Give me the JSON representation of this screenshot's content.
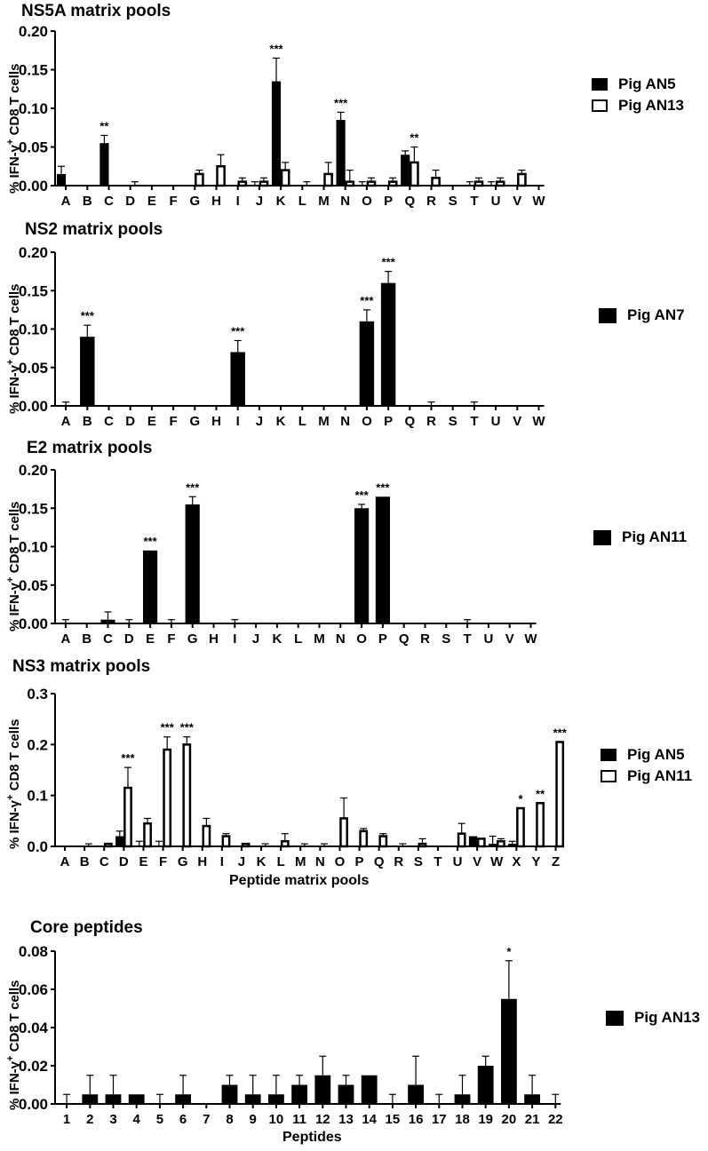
{
  "ylabel": "% IFN-γ+ CD8 T cells",
  "chart_data": [
    {
      "type": "bar",
      "title": "NS5A matrix pools",
      "xlabel": "",
      "ylabel": "% IFN-γ+ CD8 T cells",
      "ylim": [
        0,
        0.2
      ],
      "yticks": [
        "0.00",
        "0.05",
        "0.10",
        "0.15",
        "0.20"
      ],
      "categories": [
        "A",
        "B",
        "C",
        "D",
        "E",
        "F",
        "G",
        "H",
        "I",
        "J",
        "K",
        "L",
        "M",
        "N",
        "O",
        "P",
        "Q",
        "R",
        "S",
        "T",
        "U",
        "V",
        "W"
      ],
      "series": [
        {
          "name": "Pig AN5",
          "fill": "#000000",
          "values": [
            0.015,
            0,
            0.055,
            0,
            0,
            0,
            0,
            0,
            0,
            0,
            0.135,
            0,
            0,
            0.085,
            0,
            0,
            0.04,
            0,
            0,
            0,
            0,
            0,
            0
          ],
          "errors": [
            0.01,
            0,
            0.01,
            0,
            0,
            0,
            0,
            0,
            0,
            0.005,
            0.03,
            0,
            0,
            0.01,
            0.005,
            0,
            0.005,
            0,
            0,
            0.005,
            0.005,
            0,
            0
          ]
        },
        {
          "name": "Pig AN13",
          "fill": "#ffffff",
          "values": [
            0,
            0,
            0,
            0,
            0,
            0,
            0.015,
            0.025,
            0.005,
            0.005,
            0.02,
            0,
            0.015,
            0.005,
            0.005,
            0.005,
            0.03,
            0.01,
            0,
            0.005,
            0.005,
            0.015,
            0
          ],
          "errors": [
            0,
            0,
            0,
            0.005,
            0,
            0,
            0.005,
            0.015,
            0.005,
            0.005,
            0.01,
            0.005,
            0.015,
            0.015,
            0.005,
            0.005,
            0.02,
            0.01,
            0,
            0.005,
            0.005,
            0.005,
            0
          ]
        }
      ],
      "annotations": [
        {
          "category": "C",
          "text": "**"
        },
        {
          "category": "K",
          "text": "***"
        },
        {
          "category": "N",
          "text": "***"
        },
        {
          "category": "Q",
          "text": "**"
        }
      ],
      "legend": [
        "Pig AN5",
        "Pig AN13"
      ],
      "legend_position": "right"
    },
    {
      "type": "bar",
      "title": "NS2 matrix pools",
      "xlabel": "",
      "ylabel": "% IFN-γ+ CD8 T cells",
      "ylim": [
        0,
        0.2
      ],
      "yticks": [
        "0.00",
        "0.05",
        "0.10",
        "0.15",
        "0.20"
      ],
      "categories": [
        "A",
        "B",
        "C",
        "D",
        "E",
        "F",
        "G",
        "H",
        "I",
        "J",
        "K",
        "L",
        "M",
        "N",
        "O",
        "P",
        "Q",
        "R",
        "S",
        "T",
        "U",
        "V",
        "W"
      ],
      "series": [
        {
          "name": "Pig AN7",
          "fill": "#000000",
          "values": [
            0,
            0.09,
            0,
            0,
            0,
            0,
            0,
            0,
            0.07,
            0,
            0,
            0,
            0,
            0,
            0.11,
            0.16,
            0,
            0,
            0,
            0,
            0,
            0,
            0
          ],
          "errors": [
            0.005,
            0.015,
            0,
            0,
            0,
            0,
            0,
            0,
            0.015,
            0,
            0,
            0,
            0,
            0,
            0.015,
            0.015,
            0,
            0.005,
            0,
            0.005,
            0,
            0,
            0
          ]
        }
      ],
      "annotations": [
        {
          "category": "B",
          "text": "***"
        },
        {
          "category": "I",
          "text": "***"
        },
        {
          "category": "O",
          "text": "***"
        },
        {
          "category": "P",
          "text": "***"
        }
      ],
      "legend": [
        "Pig AN7"
      ],
      "legend_position": "right"
    },
    {
      "type": "bar",
      "title": "E2 matrix pools",
      "xlabel": "",
      "ylabel": "% IFN-γ+ CD8 T cells",
      "ylim": [
        0,
        0.2
      ],
      "yticks": [
        "0.00",
        "0.05",
        "0.10",
        "0.15",
        "0.20"
      ],
      "categories": [
        "A",
        "B",
        "C",
        "D",
        "E",
        "F",
        "G",
        "H",
        "I",
        "J",
        "K",
        "L",
        "M",
        "N",
        "O",
        "P",
        "Q",
        "R",
        "S",
        "T",
        "U",
        "V",
        "W"
      ],
      "series": [
        {
          "name": "Pig AN11",
          "fill": "#000000",
          "values": [
            0,
            0,
            0.005,
            0,
            0.095,
            0,
            0.155,
            0,
            0,
            0,
            0,
            0,
            0,
            0,
            0.15,
            0.165,
            0,
            0,
            0,
            0,
            0,
            0,
            0
          ],
          "errors": [
            0.005,
            0,
            0.01,
            0.005,
            0,
            0.005,
            0.01,
            0,
            0.005,
            0,
            0,
            0,
            0,
            0,
            0.005,
            0,
            0,
            0,
            0,
            0.005,
            0,
            0,
            0
          ]
        }
      ],
      "annotations": [
        {
          "category": "E",
          "text": "***"
        },
        {
          "category": "G",
          "text": "***"
        },
        {
          "category": "O",
          "text": "***"
        },
        {
          "category": "P",
          "text": "***"
        }
      ],
      "legend": [
        "Pig AN11"
      ],
      "legend_position": "right"
    },
    {
      "type": "bar",
      "title": "NS3 matrix pools",
      "xlabel": "Peptide matrix pools",
      "ylabel": "% IFN-γ+ CD8 T cells",
      "ylim": [
        0,
        0.3
      ],
      "yticks": [
        "0.0",
        "0.1",
        "0.2",
        "0.3"
      ],
      "categories": [
        "A",
        "B",
        "C",
        "D",
        "E",
        "F",
        "G",
        "H",
        "I",
        "J",
        "K",
        "L",
        "M",
        "N",
        "O",
        "P",
        "Q",
        "R",
        "S",
        "T",
        "U",
        "V",
        "W",
        "X",
        "Y",
        "Z"
      ],
      "series": [
        {
          "name": "Pig AN5",
          "fill": "#000000",
          "values": [
            0,
            0,
            0,
            0.02,
            0,
            0,
            0,
            0,
            0,
            0,
            0,
            0,
            0,
            0,
            0,
            0,
            0,
            0,
            0,
            0,
            0,
            0.02,
            0.005,
            0.005,
            0,
            0
          ],
          "errors": [
            0,
            0,
            0,
            0.01,
            0.01,
            0.01,
            0,
            0,
            0,
            0,
            0,
            0,
            0,
            0,
            0,
            0,
            0,
            0,
            0,
            0,
            0,
            0,
            0.015,
            0.005,
            0,
            0
          ]
        },
        {
          "name": "Pig AN11",
          "fill": "#ffffff",
          "values": [
            0,
            0,
            0.005,
            0.115,
            0.045,
            0.19,
            0.2,
            0.04,
            0.02,
            0.005,
            0,
            0.01,
            0,
            0,
            0.055,
            0.03,
            0.02,
            0,
            0.005,
            0,
            0.025,
            0.015,
            0.01,
            0.075,
            0.085,
            0.205
          ],
          "errors": [
            0,
            0.005,
            0,
            0.04,
            0.01,
            0.025,
            0.015,
            0.015,
            0.005,
            0,
            0.005,
            0.015,
            0.005,
            0.005,
            0.04,
            0.005,
            0.005,
            0.005,
            0.01,
            0,
            0.02,
            0,
            0.005,
            0,
            0,
            0
          ]
        }
      ],
      "annotations": [
        {
          "category": "D",
          "text": "***"
        },
        {
          "category": "F",
          "text": "***"
        },
        {
          "category": "G",
          "text": "***"
        },
        {
          "category": "X",
          "text": "*"
        },
        {
          "category": "Y",
          "text": "**"
        },
        {
          "category": "Z",
          "text": "***"
        }
      ],
      "legend": [
        "Pig AN5",
        "Pig AN11"
      ],
      "legend_position": "right"
    },
    {
      "type": "bar",
      "title": "Core peptides",
      "xlabel": "Peptides",
      "ylabel": "% IFN-γ+ CD8 T cells",
      "ylim": [
        0,
        0.08
      ],
      "yticks": [
        "0.00",
        "0.02",
        "0.04",
        "0.06",
        "0.08"
      ],
      "categories": [
        "1",
        "2",
        "3",
        "4",
        "5",
        "6",
        "7",
        "8",
        "9",
        "10",
        "11",
        "12",
        "13",
        "14",
        "15",
        "16",
        "17",
        "18",
        "19",
        "20",
        "21",
        "22"
      ],
      "series": [
        {
          "name": "Pig AN13",
          "fill": "#000000",
          "values": [
            0,
            0.005,
            0.005,
            0.005,
            0,
            0.005,
            0,
            0.01,
            0.005,
            0.005,
            0.01,
            0.015,
            0.01,
            0.015,
            0,
            0.01,
            0,
            0.005,
            0.02,
            0.055,
            0.005,
            0
          ],
          "errors": [
            0.005,
            0.01,
            0.01,
            0,
            0.005,
            0.01,
            0,
            0.005,
            0.01,
            0.01,
            0.005,
            0.01,
            0.005,
            0,
            0.005,
            0.015,
            0.005,
            0.01,
            0.005,
            0.02,
            0.01,
            0.005
          ]
        }
      ],
      "annotations": [
        {
          "category": "20",
          "text": "*"
        }
      ],
      "legend": [
        "Pig AN13"
      ],
      "legend_position": "right"
    }
  ]
}
